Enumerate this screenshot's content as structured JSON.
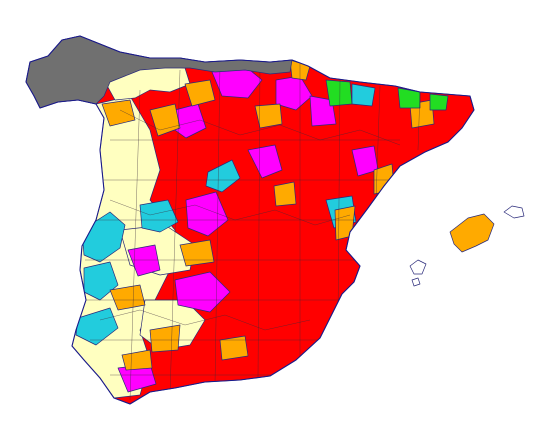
{
  "map": {
    "categories": [
      {
        "key": "no-data",
        "color": "#707070"
      },
      {
        "key": "red",
        "color": "#ff0000"
      },
      {
        "key": "magenta",
        "color": "#ff00ff"
      },
      {
        "key": "orange",
        "color": "#ffaa00"
      },
      {
        "key": "cream",
        "color": "#ffffc0"
      },
      {
        "key": "cyan",
        "color": "#22ccdd"
      },
      {
        "key": "green",
        "color": "#22dd22"
      }
    ],
    "coastline_color": "#1a1a8a",
    "border_color": "#2a2a7a",
    "background": "#ffffff"
  }
}
